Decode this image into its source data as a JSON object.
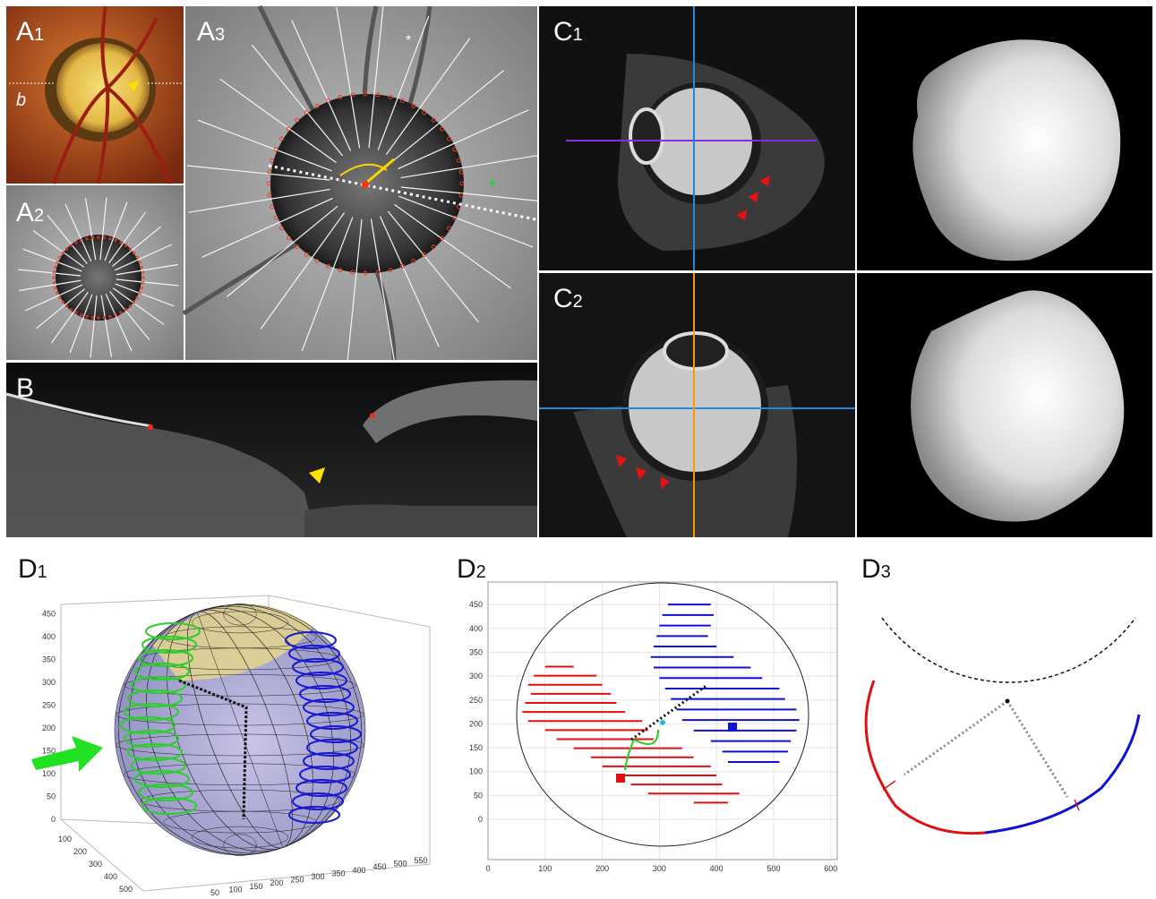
{
  "panels": [
    {
      "letter": "A",
      "sub": "1"
    },
    {
      "letter": "A",
      "sub": "2"
    },
    {
      "letter": "A",
      "sub": "3"
    },
    {
      "letter": "B"
    },
    {
      "letter": "C",
      "sub": "1"
    },
    {
      "letter": "C",
      "sub": "2"
    },
    {
      "letter": "D",
      "sub": "1"
    },
    {
      "letter": "D",
      "sub": "2"
    },
    {
      "letter": "D",
      "sub": "3"
    }
  ],
  "annotations": {
    "a1_line": "b",
    "a3_star": "*"
  },
  "d1": {
    "z_ticks": [
      0,
      50,
      100,
      150,
      200,
      250,
      300,
      350,
      400,
      450
    ],
    "x_ticks": [
      100,
      200,
      300,
      400,
      500
    ],
    "y_ticks": [
      50,
      100,
      150,
      200,
      250,
      300,
      350,
      400,
      450,
      500,
      550
    ]
  },
  "d2": {
    "yticks": [
      0,
      50,
      100,
      150,
      200,
      250,
      300,
      350,
      400,
      450
    ],
    "xticks": [
      0,
      100,
      200,
      300,
      400,
      500,
      600
    ]
  }
}
